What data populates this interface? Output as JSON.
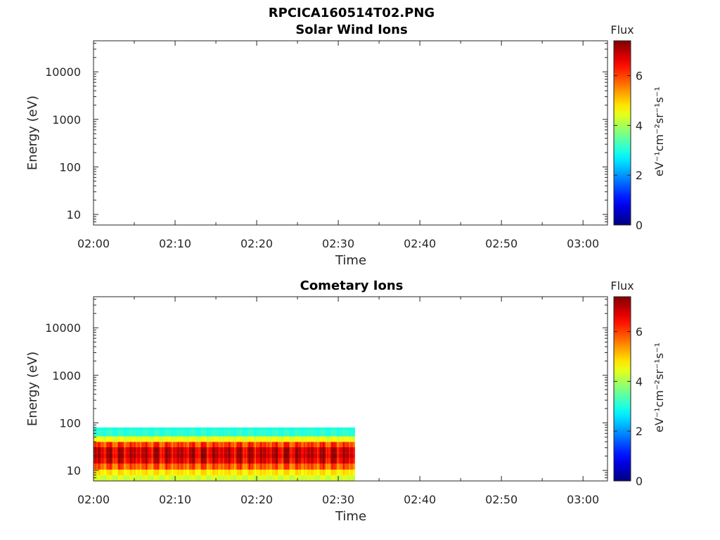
{
  "figure": {
    "title": "RPCICA160514T02.PNG"
  },
  "chart_data": [
    {
      "type": "heatmap",
      "title": "Solar Wind Ions",
      "xlabel": "Time",
      "ylabel": "Energy (eV)",
      "y_scale": "log",
      "ylim": [
        6,
        45000
      ],
      "xlim": [
        "02:00",
        "03:03"
      ],
      "x_ticks": [
        "02:00",
        "02:10",
        "02:20",
        "02:30",
        "02:40",
        "02:50",
        "03:00"
      ],
      "y_ticks": [
        "10",
        "100",
        "1000",
        "10000"
      ],
      "colorbar": {
        "title": "Flux",
        "label": "eV⁻¹cm⁻²sr⁻¹s⁻¹",
        "range": [
          0,
          7.4
        ],
        "ticks": [
          "0",
          "2",
          "4",
          "6"
        ],
        "colormap": "jet"
      },
      "data": []
    },
    {
      "type": "heatmap",
      "title": "Cometary Ions",
      "xlabel": "Time",
      "ylabel": "Energy (eV)",
      "y_scale": "log",
      "ylim": [
        6,
        45000
      ],
      "xlim": [
        "02:00",
        "03:03"
      ],
      "x_ticks": [
        "02:00",
        "02:10",
        "02:20",
        "02:30",
        "02:40",
        "02:50",
        "03:00"
      ],
      "y_ticks": [
        "10",
        "100",
        "1000",
        "10000"
      ],
      "colorbar": {
        "title": "Flux",
        "label": "eV⁻¹cm⁻²sr⁻¹s⁻¹",
        "range": [
          0,
          7.4
        ],
        "ticks": [
          "0",
          "2",
          "4",
          "6"
        ],
        "colormap": "jet"
      },
      "data": {
        "time_range": [
          "02:00",
          "02:32"
        ],
        "energy_range_eV": [
          6,
          80
        ],
        "flux_profile": [
          {
            "energy_eV": 7,
            "flux": 4.3
          },
          {
            "energy_eV": 9,
            "flux": 4.8
          },
          {
            "energy_eV": 12,
            "flux": 5.8
          },
          {
            "energy_eV": 16,
            "flux": 6.6
          },
          {
            "energy_eV": 20,
            "flux": 6.9
          },
          {
            "energy_eV": 27,
            "flux": 6.8
          },
          {
            "energy_eV": 35,
            "flux": 6.0
          },
          {
            "energy_eV": 45,
            "flux": 4.5
          },
          {
            "energy_eV": 60,
            "flux": 3.1
          },
          {
            "energy_eV": 75,
            "flux": 3.0
          }
        ]
      }
    }
  ]
}
